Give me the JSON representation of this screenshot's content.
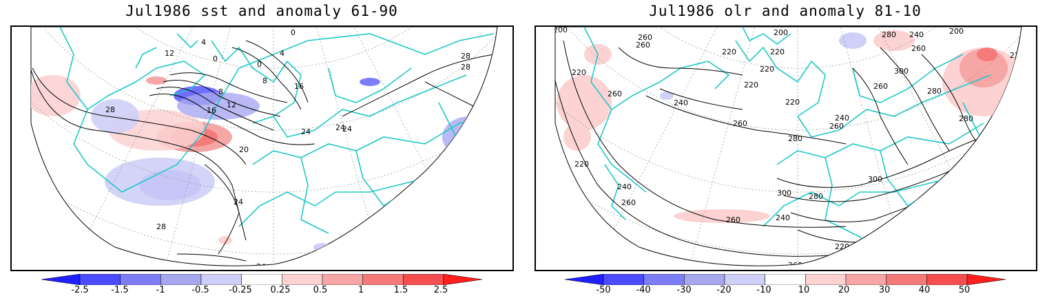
{
  "panels": [
    {
      "title": "Jul1986 sst and anomaly 61-90",
      "variable": "sst",
      "colorbar": {
        "levels": [
          "-2.5",
          "-1.5",
          "-1",
          "-0.5",
          "-0.25",
          "0.25",
          "0.5",
          "1",
          "1.5",
          "2.5"
        ],
        "colors": [
          "#1f1fff",
          "#4b4bff",
          "#7d7df5",
          "#a7a7f0",
          "#cfcff7",
          "#ffffff",
          "#fcd2d2",
          "#f7a6a6",
          "#f57a7a",
          "#f54e4e",
          "#ff1f1f"
        ]
      },
      "contour_labels": [
        "24",
        "28",
        "12",
        "4",
        "4",
        "0",
        "0",
        "0",
        "8",
        "8",
        "12",
        "16",
        "16",
        "28",
        "28",
        "28",
        "24",
        "24",
        "20",
        "24",
        "28",
        "24",
        "24"
      ]
    },
    {
      "title": "Jul1986 olr and anomaly 81-10",
      "variable": "olr",
      "colorbar": {
        "levels": [
          "-50",
          "-40",
          "-30",
          "-20",
          "-10",
          "10",
          "20",
          "30",
          "40",
          "50"
        ],
        "colors": [
          "#1f1fff",
          "#4b4bff",
          "#7d7df5",
          "#a7a7f0",
          "#cfcff7",
          "#ffffff",
          "#fcd2d2",
          "#f7a6a6",
          "#f57a7a",
          "#f54e4e",
          "#ff1f1f"
        ]
      },
      "contour_labels": [
        "200",
        "200",
        "200",
        "260",
        "260",
        "220",
        "220",
        "220",
        "220",
        "280",
        "240",
        "220",
        "260",
        "300",
        "220",
        "240",
        "260",
        "220",
        "280",
        "260",
        "260",
        "260",
        "280",
        "240",
        "280",
        "220",
        "220",
        "300",
        "300",
        "280",
        "260",
        "200",
        "220",
        "240",
        "240",
        "240",
        "260",
        "260"
      ]
    }
  ]
}
